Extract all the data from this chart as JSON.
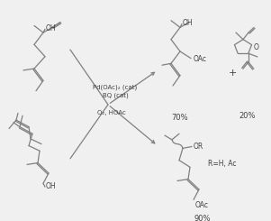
{
  "bg_color": "#f0f0f0",
  "line_color": "#808080",
  "text_color": "#404040",
  "figsize": [
    3.01,
    2.45
  ],
  "dpi": 100,
  "reagents_line1": "Pd(OAc)₂ (cat)",
  "reagents_line2": "BQ (cat)",
  "reagents_line3": "O₂, HOAc",
  "yield_top": "70%",
  "yield_side": "20%",
  "yield_bottom": "90%",
  "rgroup": "R=H, Ac",
  "plus_sign": "+",
  "oac_label": "OAc",
  "or_label": "OR",
  "oh_label": "OH"
}
